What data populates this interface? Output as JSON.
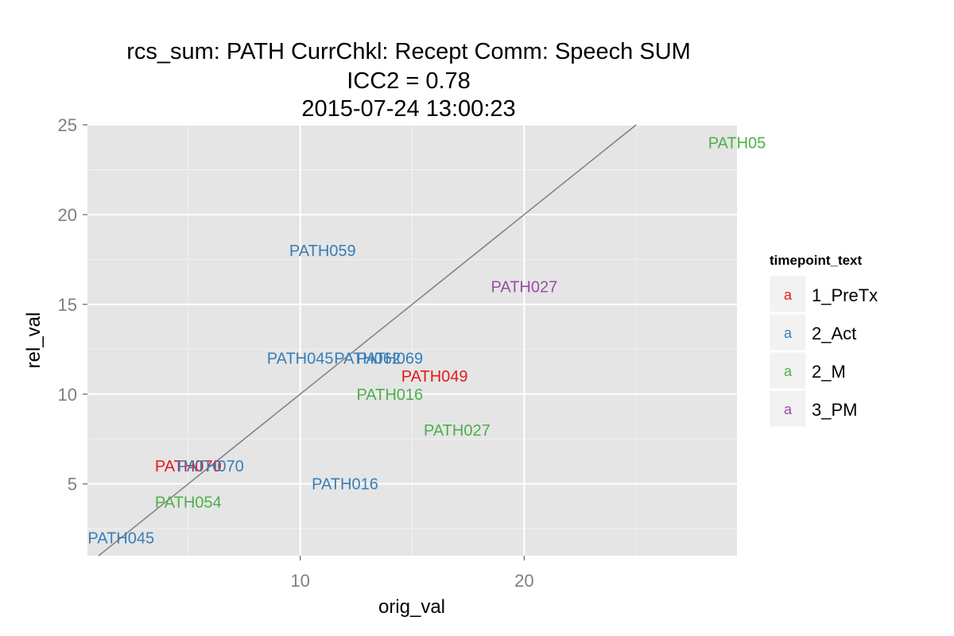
{
  "chart_data": {
    "type": "scatter",
    "title": "rcs_sum: PATH CurrChkl: Recept Comm: Speech SUM",
    "subtitle_lines": [
      "ICC2 = 0.78",
      "2015-07-24 13:00:23"
    ],
    "xlabel": "orig_val",
    "ylabel": "rel_val",
    "xlim": [
      0.5,
      29.5
    ],
    "ylim": [
      1.0,
      25.0
    ],
    "x_ticks": [
      10,
      20
    ],
    "y_ticks": [
      5,
      10,
      15,
      20,
      25
    ],
    "x_minor_ticks": [
      5,
      15,
      25
    ],
    "y_minor_ticks": [
      2.5,
      7.5,
      12.5,
      17.5,
      22.5
    ],
    "grid": true,
    "reference_line": {
      "slope": 1,
      "intercept": 0,
      "color": "#7f7f7f"
    },
    "legend": {
      "title": "timepoint_text",
      "position": "right",
      "key_glyph": "a",
      "entries": [
        {
          "name": "1_PreTx",
          "color": "#e41a1c"
        },
        {
          "name": "2_Act",
          "color": "#377eb8"
        },
        {
          "name": "2_M",
          "color": "#4daf4a"
        },
        {
          "name": "3_PM",
          "color": "#984ea3"
        }
      ]
    },
    "points": [
      {
        "label": "PATH05",
        "x": 29.5,
        "y": 24,
        "group": "2_M"
      },
      {
        "label": "PATH059",
        "x": 11,
        "y": 18,
        "group": "2_Act"
      },
      {
        "label": "PATH027",
        "x": 20,
        "y": 16,
        "group": "3_PM"
      },
      {
        "label": "PATH045",
        "x": 10,
        "y": 12,
        "group": "2_Act"
      },
      {
        "label": "PATH062",
        "x": 13,
        "y": 12,
        "group": "2_Act"
      },
      {
        "label": "PATH069",
        "x": 14,
        "y": 12,
        "group": "2_Act"
      },
      {
        "label": "PATH049",
        "x": 16,
        "y": 11,
        "group": "1_PreTx"
      },
      {
        "label": "PATH016",
        "x": 14,
        "y": 10,
        "group": "2_M"
      },
      {
        "label": "PATH027",
        "x": 17,
        "y": 8,
        "group": "2_M"
      },
      {
        "label": "PATH070",
        "x": 5,
        "y": 6,
        "group": "1_PreTx"
      },
      {
        "label": "PATH070",
        "x": 6,
        "y": 6,
        "group": "2_Act"
      },
      {
        "label": "PATH016",
        "x": 12,
        "y": 5,
        "group": "2_Act"
      },
      {
        "label": "PATH054",
        "x": 5,
        "y": 4,
        "group": "2_M"
      },
      {
        "label": "PATH045",
        "x": 2,
        "y": 2,
        "group": "2_Act"
      }
    ]
  }
}
